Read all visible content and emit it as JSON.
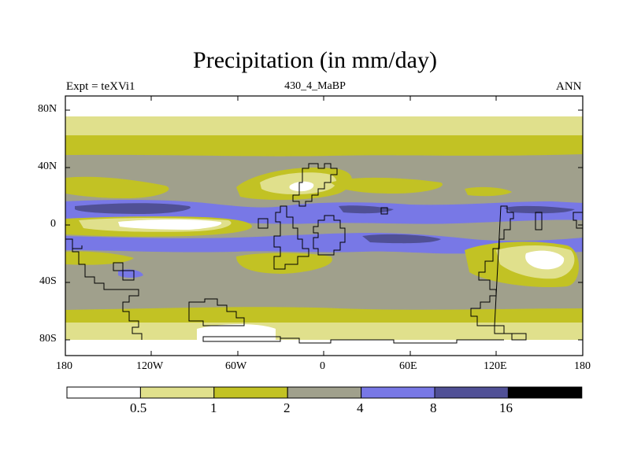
{
  "title": "Precipitation (in mm/day)",
  "left_label": "Expt = teXVi1",
  "center_label": "430_4_MaBP",
  "right_label": "ANN",
  "map": {
    "projection": "cylindrical equidistant",
    "lat_ticks": [
      "80N",
      "40N",
      "0",
      "40S",
      "80S"
    ],
    "lon_ticks": [
      "180",
      "120W",
      "60W",
      "0",
      "60E",
      "120E",
      "180"
    ]
  },
  "legend": {
    "colors": [
      "#ffffff",
      "#e0e08c",
      "#c2c224",
      "#a0a08c",
      "#7878e6",
      "#505096",
      "#000000"
    ],
    "labels": [
      "0.5",
      "1",
      "2",
      "4",
      "8",
      "16"
    ]
  }
}
